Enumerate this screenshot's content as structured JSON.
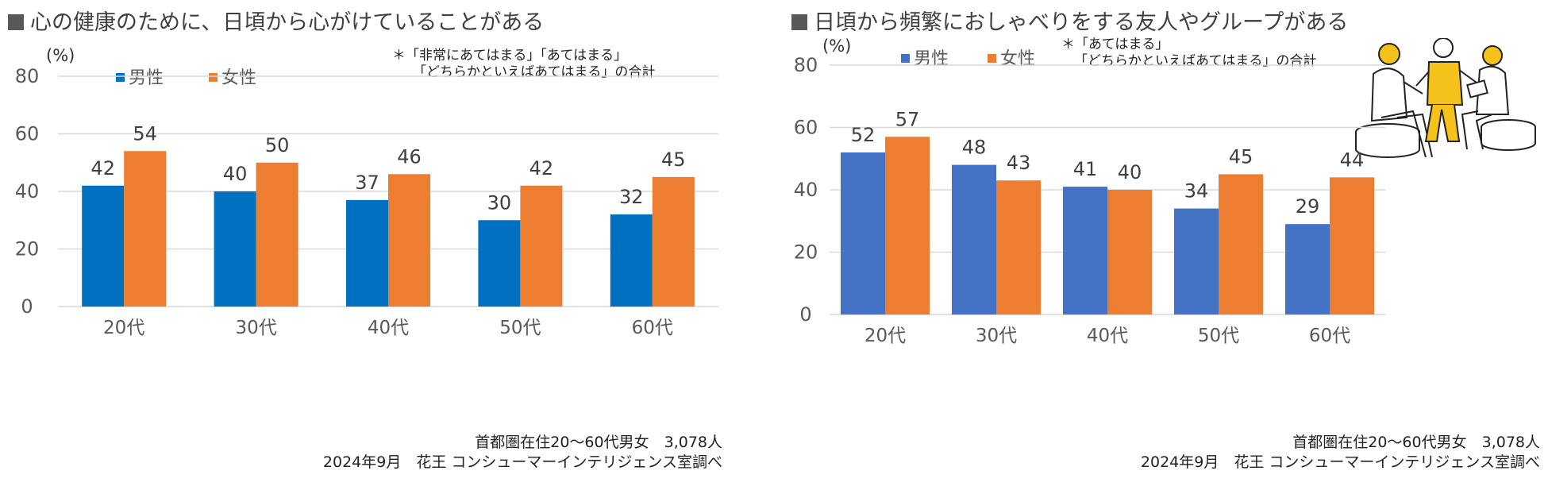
{
  "chart_data": [
    {
      "type": "bar",
      "title": "心の健康のために、日頃から心がけていることがある",
      "ylabel": "(%)",
      "ylim": [
        0,
        80
      ],
      "yticks": [
        0,
        20,
        40,
        60,
        80
      ],
      "categories": [
        "20代",
        "30代",
        "40代",
        "50代",
        "60代"
      ],
      "series": [
        {
          "name": "男性",
          "color": "#0070C0",
          "values": [
            42,
            40,
            37,
            30,
            32
          ]
        },
        {
          "name": "女性",
          "color": "#ED7D31",
          "values": [
            54,
            50,
            46,
            42,
            45
          ]
        }
      ],
      "note": [
        "＊「非常にあてはまる」「あてはまる」",
        "「どちらかといえばあてはまる」の合計"
      ],
      "source": [
        "首都圏在住20～60代男女　3,078人",
        "2024年9月　花王 コンシューマーインテリジェンス室調べ"
      ],
      "legend": "top-left",
      "grid": true
    },
    {
      "type": "bar",
      "title": "日頃から頻繁におしゃべりをする友人やグループがある",
      "ylabel": "(%)",
      "ylim": [
        0,
        80
      ],
      "yticks": [
        0,
        20,
        40,
        60,
        80
      ],
      "categories": [
        "20代",
        "30代",
        "40代",
        "50代",
        "60代"
      ],
      "series": [
        {
          "name": "男性",
          "color": "#4472C4",
          "values": [
            52,
            48,
            41,
            34,
            29
          ]
        },
        {
          "name": "女性",
          "color": "#ED7D31",
          "values": [
            57,
            43,
            40,
            45,
            44
          ]
        }
      ],
      "note": [
        "＊「あてはまる」",
        "「どちらかといえばあてはまる」の合計"
      ],
      "source": [
        "首都圏在住20～60代男女　3,078人",
        "2024年9月　花王 コンシューマーインテリジェンス室調べ"
      ],
      "legend": "top-left",
      "grid": true
    }
  ]
}
